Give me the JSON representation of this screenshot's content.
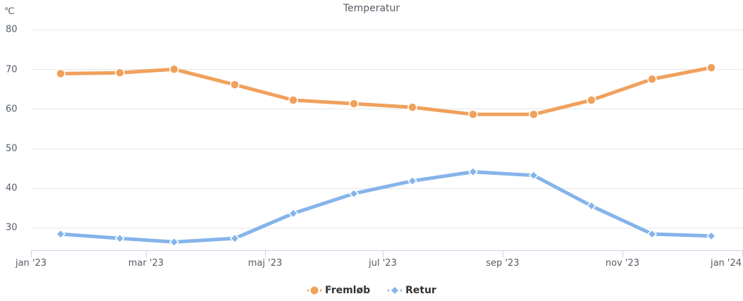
{
  "chart_data": {
    "type": "line",
    "title": "Temperatur",
    "xlabel": "",
    "ylabel": "℃",
    "ylim": [
      24,
      80
    ],
    "yticks": [
      30,
      40,
      50,
      60,
      70,
      80
    ],
    "ytick_labels": [
      "30",
      "40",
      "50",
      "60",
      "70",
      "80"
    ],
    "xtick_labels": [
      "jan '23",
      "mar '23",
      "maj '23",
      "jul '23",
      "sep '23",
      "nov '23",
      "jan '24"
    ],
    "grid": true,
    "legend_position": "bottom",
    "categories": [
      "jan '23",
      "feb '23",
      "mar '23",
      "apr '23",
      "maj '23",
      "jun '23",
      "jul '23",
      "aug '23",
      "sep '23",
      "okt '23",
      "nov '23",
      "dec '23"
    ],
    "series": [
      {
        "name": "Fremløb",
        "color": "#f0a15c",
        "marker": "circle",
        "values": [
          68.9,
          69.1,
          70.0,
          66.1,
          62.2,
          61.3,
          60.4,
          58.6,
          58.6,
          62.2,
          67.5,
          70.4
        ]
      },
      {
        "name": "Retur",
        "color": "#85b4ea",
        "marker": "diamond",
        "values": [
          28.4,
          27.3,
          26.4,
          27.3,
          33.6,
          38.6,
          41.8,
          44.1,
          43.2,
          35.5,
          28.4,
          27.9
        ]
      }
    ]
  },
  "chart": {
    "title": "Temperatur",
    "unit": "℃",
    "yticks": [
      "80",
      "70",
      "60",
      "50",
      "40",
      "30"
    ],
    "xticks": [
      "jan '23",
      "mar '23",
      "maj '23",
      "jul '23",
      "sep '23",
      "nov '23",
      "jan '24"
    ],
    "legend": [
      {
        "label": "Fremløb",
        "color": "#f0a15c"
      },
      {
        "label": "Retur",
        "color": "#85b4ea"
      }
    ]
  }
}
